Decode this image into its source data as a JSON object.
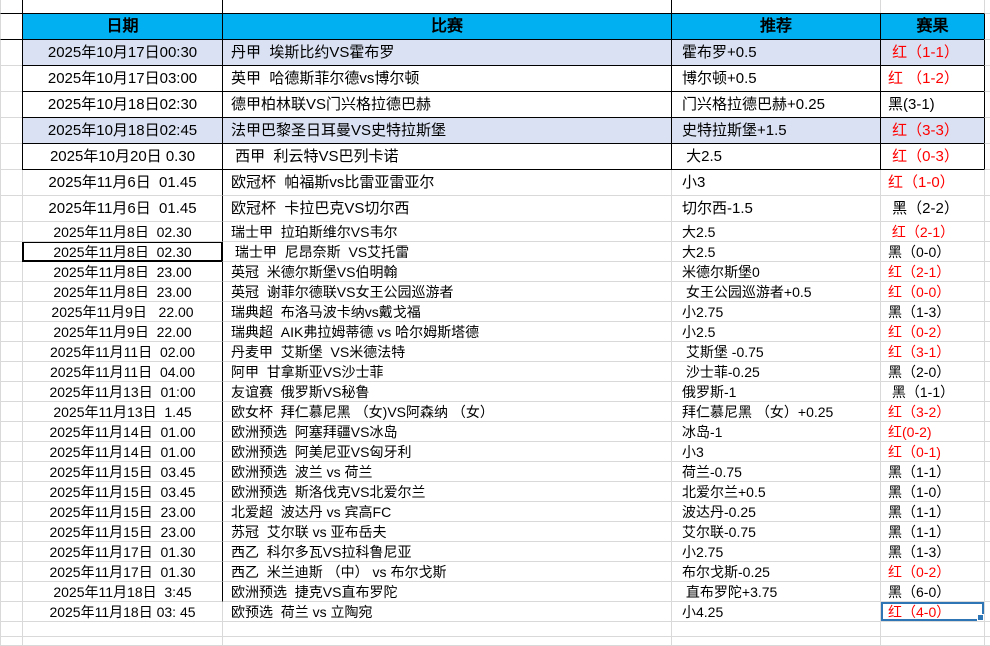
{
  "header": {
    "date": "日期",
    "match": "比赛",
    "rec": "推荐",
    "result": "赛果"
  },
  "colors": {
    "header_bg": "#00B0F0",
    "row_highlight": "#D9E1F2",
    "result_red": "#FF0000",
    "result_black": "#000000",
    "selection_border": "#2E75B6",
    "gridline": "#D9D9D9"
  },
  "rows": [
    {
      "date": "2025年10月17日00:30",
      "match": "丹甲  埃斯比约VS霍布罗",
      "rec": "霍布罗+0.5",
      "result": " 红（1-1）",
      "result_color": "red",
      "highlight": true,
      "bordered": true,
      "boxed_date": false,
      "selected": false
    },
    {
      "date": "2025年10月17日03:00",
      "match": "英甲  哈德斯菲尔德vs博尔顿",
      "rec": "博尔顿+0.5",
      "result": "红 （1-2）",
      "result_color": "red",
      "highlight": false,
      "bordered": true,
      "boxed_date": false,
      "selected": false
    },
    {
      "date": "2025年10月18日02:30",
      "match": "德甲柏林联VS门兴格拉德巴赫",
      "rec": "门兴格拉德巴赫+0.25",
      "result": "黑(3-1)",
      "result_color": "black",
      "highlight": false,
      "bordered": true,
      "boxed_date": false,
      "selected": false
    },
    {
      "date": "2025年10月18日02:45",
      "match": "法甲巴黎圣日耳曼VS史特拉斯堡",
      "rec": "史特拉斯堡+1.5",
      "result": " 红（3-3）",
      "result_color": "red",
      "highlight": true,
      "bordered": true,
      "boxed_date": false,
      "selected": false
    },
    {
      "date": "2025年10月20日 0.30",
      "match": " 西甲  利云特VS巴列卡诺",
      "rec": " 大2.5",
      "result": " 红（0-3）",
      "result_color": "red",
      "highlight": false,
      "bordered": true,
      "boxed_date": false,
      "selected": false
    },
    {
      "date": "2025年11月6日  01.45",
      "match": "欧冠杯  帕福斯vs比雷亚雷亚尔",
      "rec": "小3",
      "result": "红（1-0）",
      "result_color": "red",
      "highlight": false,
      "bordered": false,
      "boxed_date": false,
      "selected": false
    },
    {
      "date": "2025年11月6日  01.45",
      "match": "欧冠杯  卡拉巴克VS切尔西",
      "rec": "切尔西-1.5",
      "result": " 黑（2-2）",
      "result_color": "black",
      "highlight": false,
      "bordered": false,
      "boxed_date": false,
      "selected": false
    },
    {
      "date": "2025年11月8日  02.30",
      "match": "瑞士甲  拉珀斯维尔VS韦尔",
      "rec": "大2.5",
      "result": " 红（2-1）",
      "result_color": "red",
      "highlight": false,
      "bordered": false,
      "boxed_date": false,
      "selected": false
    },
    {
      "date": "2025年11月8日  02.30",
      "match": " 瑞士甲  尼昂奈斯  VS艾托雷",
      "rec": "大2.5",
      "result": "黑（0-0）",
      "result_color": "black",
      "highlight": false,
      "bordered": false,
      "boxed_date": true,
      "selected": false
    },
    {
      "date": "2025年11月8日  23.00",
      "match": "英冠  米德尔斯堡VS伯明翰",
      "rec": "米德尔斯堡0",
      "result": "红（2-1）",
      "result_color": "red",
      "highlight": false,
      "bordered": false,
      "boxed_date": false,
      "selected": false
    },
    {
      "date": "2025年11月8日  23.00",
      "match": "英冠  谢菲尔德联VS女王公园巡游者",
      "rec": " 女王公园巡游者+0.5",
      "result": "红（0-0）",
      "result_color": "red",
      "highlight": false,
      "bordered": false,
      "boxed_date": false,
      "selected": false
    },
    {
      "date": "2025年11月9日   22.00",
      "match": "瑞典超  布洛马波卡纳vs戴戈福",
      "rec": "小2.75",
      "result": "黑（1-3）",
      "result_color": "black",
      "highlight": false,
      "bordered": false,
      "boxed_date": false,
      "selected": false
    },
    {
      "date": "2025年11月9日  22.00",
      "match": "瑞典超  AIK弗拉姆蒂德 vs 哈尔姆斯塔德",
      "rec": "小2.5",
      "result": "红（0-2）",
      "result_color": "red",
      "highlight": false,
      "bordered": false,
      "boxed_date": false,
      "selected": false
    },
    {
      "date": "2025年11月11日  02.00",
      "match": "丹麦甲  艾斯堡  VS米德法特",
      "rec": " 艾斯堡 -0.75",
      "result": "红（3-1）",
      "result_color": "red",
      "highlight": false,
      "bordered": false,
      "boxed_date": false,
      "selected": false
    },
    {
      "date": "2025年11月11日  04.00",
      "match": "阿甲  甘拿斯亚VS沙士菲",
      "rec": " 沙士菲-0.25",
      "result": "黑（2-0）",
      "result_color": "black",
      "highlight": false,
      "bordered": false,
      "boxed_date": false,
      "selected": false
    },
    {
      "date": "2025年11月13日  01:00",
      "match": "友谊赛  俄罗斯VS秘鲁",
      "rec": "俄罗斯-1",
      "result": " 黑（1-1）",
      "result_color": "black",
      "highlight": false,
      "bordered": false,
      "boxed_date": false,
      "selected": false
    },
    {
      "date": "2025年11月13日  1.45",
      "match": "欧女杯  拜仁慕尼黑 （女)VS阿森纳 （女）",
      "rec": "拜仁慕尼黑 （女）+0.25",
      "result": "红（3-2）",
      "result_color": "red",
      "highlight": false,
      "bordered": false,
      "boxed_date": false,
      "selected": false
    },
    {
      "date": "2025年11月14日  01.00",
      "match": "欧洲预选  阿塞拜疆VS冰岛",
      "rec": "冰岛-1",
      "result": "红(0-2)",
      "result_color": "red",
      "highlight": false,
      "bordered": false,
      "boxed_date": false,
      "selected": false
    },
    {
      "date": "2025年11月14日  01.00",
      "match": "欧洲预选  阿美尼亚VS匈牙利",
      "rec": "小3",
      "result": "红（0-1)",
      "result_color": "red",
      "highlight": false,
      "bordered": false,
      "boxed_date": false,
      "selected": false
    },
    {
      "date": "2025年11月15日  03.45",
      "match": "欧洲预选  波兰 vs 荷兰",
      "rec": "荷兰-0.75",
      "result": "黑（1-1）",
      "result_color": "black",
      "highlight": false,
      "bordered": false,
      "boxed_date": false,
      "selected": false
    },
    {
      "date": "2025年11月15日  03.45",
      "match": "欧洲预选  斯洛伐克VS北爱尔兰",
      "rec": "北爱尔兰+0.5",
      "result": "黑（1-0）",
      "result_color": "black",
      "highlight": false,
      "bordered": false,
      "boxed_date": false,
      "selected": false
    },
    {
      "date": "2025年11月15日  23.00",
      "match": "北爱超  波达丹 vs 宾高FC",
      "rec": "波达丹-0.25",
      "result": "黑（1-1）",
      "result_color": "black",
      "highlight": false,
      "bordered": false,
      "boxed_date": false,
      "selected": false
    },
    {
      "date": "2025年11月15日  23.00",
      "match": "苏冠  艾尔联 vs 亚布岳夫",
      "rec": "艾尔联-0.75",
      "result": "黑（1-1）",
      "result_color": "black",
      "highlight": false,
      "bordered": false,
      "boxed_date": false,
      "selected": false
    },
    {
      "date": "2025年11月17日  01.30",
      "match": "西乙  科尔多瓦VS拉科鲁尼亚",
      "rec": "小2.75",
      "result": "黑（1-3）",
      "result_color": "black",
      "highlight": false,
      "bordered": false,
      "boxed_date": false,
      "selected": false
    },
    {
      "date": "2025年11月17日  01.30",
      "match": "西乙  米兰迪斯 （中） vs 布尔戈斯",
      "rec": "布尔戈斯-0.25",
      "result": "红（0-2）",
      "result_color": "red",
      "highlight": false,
      "bordered": false,
      "boxed_date": false,
      "selected": false
    },
    {
      "date": "2025年11月18日  3:45",
      "match": "欧洲预选  捷克VS直布罗陀",
      "rec": " 直布罗陀+3.75",
      "result": "黑（6-0）",
      "result_color": "black",
      "highlight": false,
      "bordered": false,
      "boxed_date": false,
      "selected": false
    },
    {
      "date": "2025年11月18日 03: 45",
      "match": "欧预选  荷兰 vs 立陶宛",
      "rec": "小4.25",
      "result": "红（4-0）",
      "result_color": "red",
      "highlight": false,
      "bordered": false,
      "boxed_date": false,
      "selected": true
    }
  ]
}
